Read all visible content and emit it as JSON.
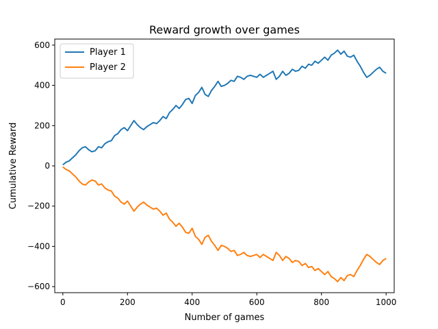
{
  "chart_data": {
    "type": "line",
    "title": "Reward growth over games",
    "xlabel": "Number of games",
    "ylabel": "Cumulative Reward",
    "xlim": [
      -25,
      1025
    ],
    "ylim": [
      -630,
      630
    ],
    "xticks": [
      0,
      200,
      400,
      600,
      800,
      1000
    ],
    "yticks": [
      -600,
      -400,
      -200,
      0,
      200,
      400,
      600
    ],
    "grid": false,
    "legend_position": "top-left",
    "series": [
      {
        "name": "Player 1",
        "color": "#1f77b4",
        "x": [
          0,
          10,
          20,
          30,
          40,
          50,
          60,
          70,
          80,
          90,
          100,
          110,
          120,
          130,
          140,
          150,
          160,
          170,
          180,
          190,
          200,
          210,
          220,
          230,
          240,
          250,
          260,
          270,
          280,
          290,
          300,
          310,
          320,
          330,
          340,
          350,
          360,
          370,
          380,
          390,
          400,
          410,
          420,
          430,
          440,
          450,
          460,
          470,
          480,
          490,
          500,
          510,
          520,
          530,
          540,
          550,
          560,
          570,
          580,
          590,
          600,
          610,
          620,
          630,
          640,
          650,
          660,
          670,
          680,
          690,
          700,
          710,
          720,
          730,
          740,
          750,
          760,
          770,
          780,
          790,
          800,
          810,
          820,
          830,
          840,
          850,
          860,
          870,
          880,
          890,
          900,
          910,
          920,
          930,
          940,
          950,
          960,
          970,
          980,
          990,
          1000
        ],
        "y": [
          5,
          18,
          25,
          40,
          55,
          75,
          90,
          95,
          80,
          70,
          75,
          95,
          90,
          110,
          120,
          125,
          150,
          160,
          180,
          190,
          175,
          200,
          225,
          205,
          190,
          180,
          195,
          205,
          215,
          210,
          225,
          245,
          235,
          265,
          280,
          300,
          285,
          305,
          330,
          335,
          310,
          350,
          365,
          390,
          355,
          345,
          375,
          395,
          420,
          395,
          400,
          410,
          425,
          420,
          445,
          440,
          430,
          445,
          450,
          445,
          440,
          455,
          440,
          450,
          460,
          470,
          430,
          445,
          470,
          450,
          460,
          480,
          470,
          475,
          495,
          485,
          505,
          500,
          520,
          510,
          525,
          540,
          525,
          550,
          560,
          575,
          555,
          570,
          545,
          540,
          550,
          520,
          495,
          465,
          440,
          450,
          465,
          480,
          490,
          470,
          460
        ]
      },
      {
        "name": "Player 2",
        "color": "#ff7f0e",
        "x": [
          0,
          10,
          20,
          30,
          40,
          50,
          60,
          70,
          80,
          90,
          100,
          110,
          120,
          130,
          140,
          150,
          160,
          170,
          180,
          190,
          200,
          210,
          220,
          230,
          240,
          250,
          260,
          270,
          280,
          290,
          300,
          310,
          320,
          330,
          340,
          350,
          360,
          370,
          380,
          390,
          400,
          410,
          420,
          430,
          440,
          450,
          460,
          470,
          480,
          490,
          500,
          510,
          520,
          530,
          540,
          550,
          560,
          570,
          580,
          590,
          600,
          610,
          620,
          630,
          640,
          650,
          660,
          670,
          680,
          690,
          700,
          710,
          720,
          730,
          740,
          750,
          760,
          770,
          780,
          790,
          800,
          810,
          820,
          830,
          840,
          850,
          860,
          870,
          880,
          890,
          900,
          910,
          920,
          930,
          940,
          950,
          960,
          970,
          980,
          990,
          1000
        ],
        "y": [
          -5,
          -18,
          -25,
          -40,
          -55,
          -75,
          -90,
          -95,
          -80,
          -70,
          -75,
          -95,
          -90,
          -110,
          -120,
          -125,
          -150,
          -160,
          -180,
          -190,
          -175,
          -200,
          -225,
          -205,
          -190,
          -180,
          -195,
          -205,
          -215,
          -210,
          -225,
          -245,
          -235,
          -265,
          -280,
          -300,
          -285,
          -305,
          -330,
          -335,
          -310,
          -350,
          -365,
          -390,
          -355,
          -345,
          -375,
          -395,
          -420,
          -395,
          -400,
          -410,
          -425,
          -420,
          -445,
          -440,
          -430,
          -445,
          -450,
          -445,
          -440,
          -455,
          -440,
          -450,
          -460,
          -470,
          -430,
          -445,
          -470,
          -450,
          -460,
          -480,
          -470,
          -475,
          -495,
          -485,
          -505,
          -500,
          -520,
          -510,
          -525,
          -540,
          -525,
          -550,
          -560,
          -575,
          -555,
          -570,
          -545,
          -540,
          -550,
          -520,
          -495,
          -465,
          -440,
          -450,
          -465,
          -480,
          -490,
          -470,
          -460
        ]
      }
    ]
  }
}
